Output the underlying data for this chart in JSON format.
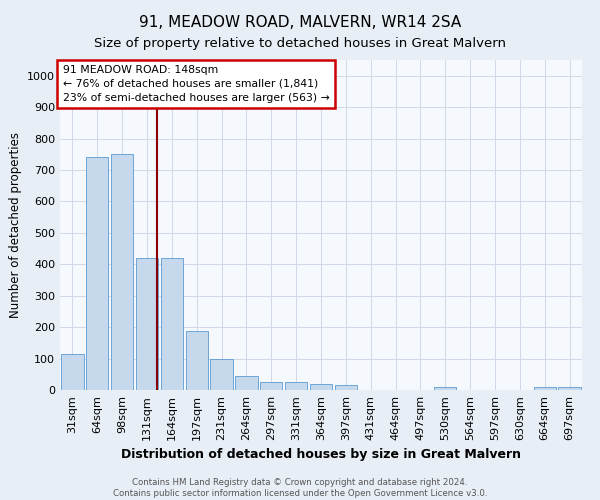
{
  "title": "91, MEADOW ROAD, MALVERN, WR14 2SA",
  "subtitle": "Size of property relative to detached houses in Great Malvern",
  "xlabel": "Distribution of detached houses by size in Great Malvern",
  "ylabel": "Number of detached properties",
  "categories": [
    "31sqm",
    "64sqm",
    "98sqm",
    "131sqm",
    "164sqm",
    "197sqm",
    "231sqm",
    "264sqm",
    "297sqm",
    "331sqm",
    "364sqm",
    "397sqm",
    "431sqm",
    "464sqm",
    "497sqm",
    "530sqm",
    "564sqm",
    "597sqm",
    "630sqm",
    "664sqm",
    "697sqm"
  ],
  "values": [
    113,
    740,
    752,
    420,
    420,
    187,
    98,
    46,
    25,
    25,
    18,
    15,
    0,
    0,
    0,
    8,
    0,
    0,
    0,
    8,
    8
  ],
  "bar_color": "#c5d8ec",
  "bar_edge_color": "#5b9bd5",
  "vline_color": "#8b0000",
  "vline_x_index": 3.42,
  "annotation_text_line1": "91 MEADOW ROAD: 148sqm",
  "annotation_text_line2": "← 76% of detached houses are smaller (1,841)",
  "annotation_text_line3": "23% of semi-detached houses are larger (563) →",
  "annotation_box_color": "#ffffff",
  "annotation_box_edge": "#cc0000",
  "ylim": [
    0,
    1050
  ],
  "yticks": [
    0,
    100,
    200,
    300,
    400,
    500,
    600,
    700,
    800,
    900,
    1000
  ],
  "title_fontsize": 11,
  "subtitle_fontsize": 9.5,
  "xlabel_fontsize": 9,
  "ylabel_fontsize": 8.5,
  "tick_fontsize": 8,
  "footer_text": "Contains HM Land Registry data © Crown copyright and database right 2024.\nContains public sector information licensed under the Open Government Licence v3.0.",
  "background_color": "#e8eef5",
  "plot_bg_color": "#f5f8fc",
  "grid_color": "#d0d8e8"
}
